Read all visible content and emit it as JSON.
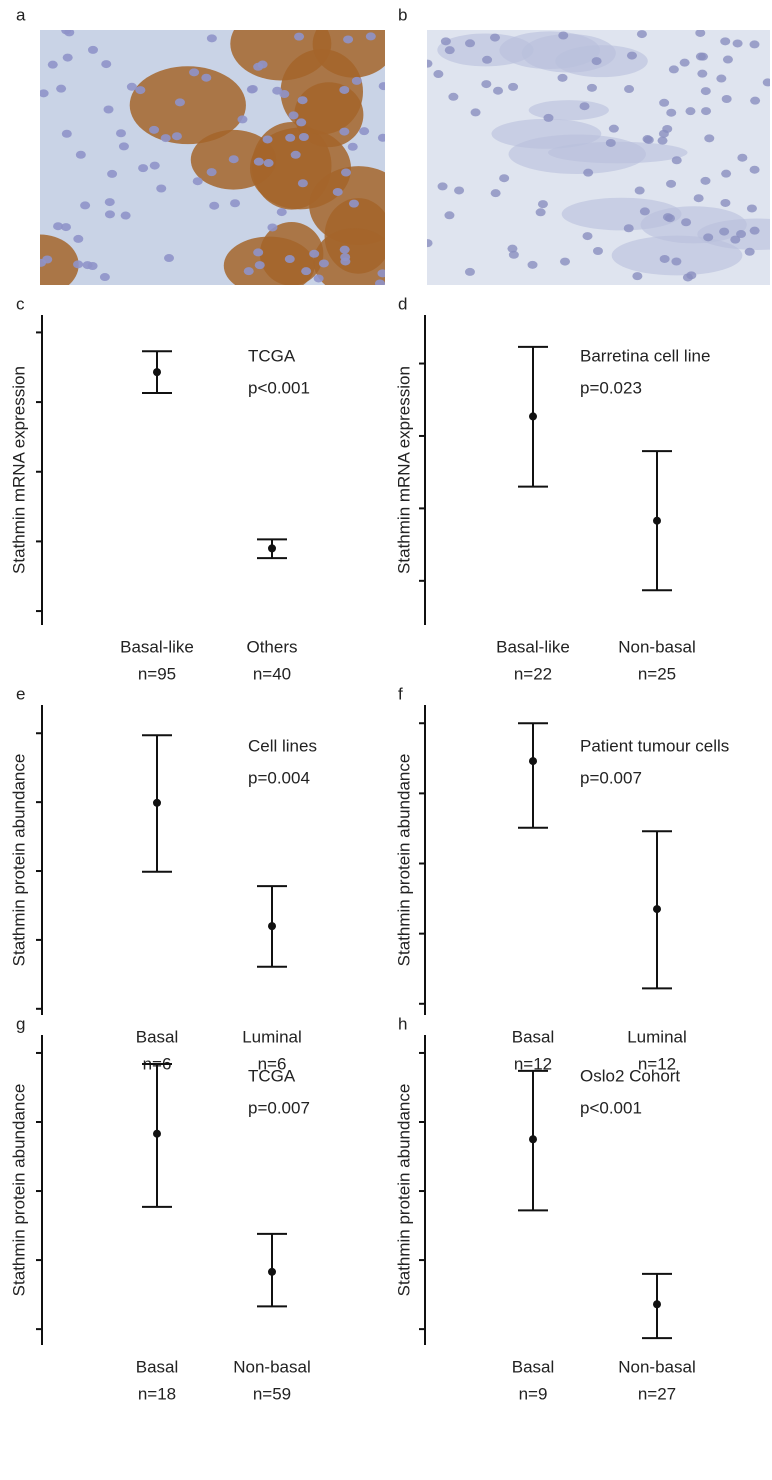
{
  "image_panels": [
    "a",
    "b"
  ],
  "chart_data": [
    {
      "type": "errorbar",
      "panel": "c",
      "ylabel": "Stathmin mRNA expression",
      "annotation": [
        "TCGA",
        "p<0.001"
      ],
      "categories": [
        "Basal-like",
        "Others"
      ],
      "n_labels": [
        "n=95",
        "n=40"
      ],
      "values": [
        3.43,
        0.9
      ],
      "lower": [
        3.13,
        0.76
      ],
      "upper": [
        3.73,
        1.03
      ],
      "ylim": [
        -0.2,
        4.25
      ],
      "yticks": [
        0,
        1,
        2,
        3,
        4
      ],
      "color": "#111111"
    },
    {
      "type": "errorbar",
      "panel": "d",
      "ylabel": "Stathmin mRNA expression",
      "annotation": [
        "Barretina cell line",
        "p=0.023"
      ],
      "categories": [
        "Basal-like",
        "Non-basal"
      ],
      "n_labels": [
        "n=22",
        "n=25"
      ],
      "values": [
        2.27,
        0.83
      ],
      "lower": [
        1.3,
        -0.13
      ],
      "upper": [
        3.23,
        1.79
      ],
      "ylim": [
        -0.61,
        3.67
      ],
      "yticks": [
        0,
        1,
        2,
        3
      ],
      "color": "#111111"
    },
    {
      "type": "errorbar",
      "panel": "e",
      "ylabel": "Stathmin protein abundance",
      "annotation": [
        "Cell lines",
        "p=0.004"
      ],
      "categories": [
        "Basal",
        "Luminal"
      ],
      "n_labels": [
        "n=6",
        "n=6"
      ],
      "values": [
        2.99,
        1.2
      ],
      "lower": [
        1.99,
        0.61
      ],
      "upper": [
        3.97,
        1.78
      ],
      "ylim": [
        -0.09,
        4.41
      ],
      "yticks": [
        0,
        1,
        2,
        3,
        4
      ],
      "color": "#111111"
    },
    {
      "type": "errorbar",
      "panel": "f",
      "ylabel": "Stathmin protein abundance",
      "annotation": [
        "Patient tumour cells",
        "p=0.007"
      ],
      "categories": [
        "Basal",
        "Luminal"
      ],
      "n_labels": [
        "n=12",
        "n=12"
      ],
      "values": [
        3.46,
        1.35
      ],
      "lower": [
        2.51,
        0.22
      ],
      "upper": [
        4.0,
        2.46
      ],
      "ylim": [
        -0.16,
        4.26
      ],
      "yticks": [
        0,
        1,
        2,
        3,
        4
      ],
      "color": "#111111"
    },
    {
      "type": "errorbar",
      "panel": "g",
      "ylabel": "Stathmin protein abundance",
      "annotation": [
        "TCGA",
        "p=0.007"
      ],
      "categories": [
        "Basal",
        "Non-basal"
      ],
      "n_labels": [
        "n=18",
        "n=59"
      ],
      "values": [
        2.83,
        0.83
      ],
      "lower": [
        1.77,
        0.33
      ],
      "upper": [
        3.84,
        1.38
      ],
      "ylim": [
        -0.23,
        4.26
      ],
      "yticks": [
        0,
        1,
        2,
        3,
        4
      ],
      "color": "#111111"
    },
    {
      "type": "errorbar",
      "panel": "h",
      "ylabel": "Stathmin protein abundance",
      "annotation": [
        "Oslo2 Cohort",
        "p<0.001"
      ],
      "categories": [
        "Basal",
        "Non-basal"
      ],
      "n_labels": [
        "n=9",
        "n=27"
      ],
      "values": [
        2.75,
        0.36
      ],
      "lower": [
        1.72,
        -0.13
      ],
      "upper": [
        3.74,
        0.8
      ],
      "ylim": [
        -0.23,
        4.26
      ],
      "yticks": [
        0,
        1,
        2,
        3,
        4
      ],
      "color": "#111111"
    }
  ]
}
